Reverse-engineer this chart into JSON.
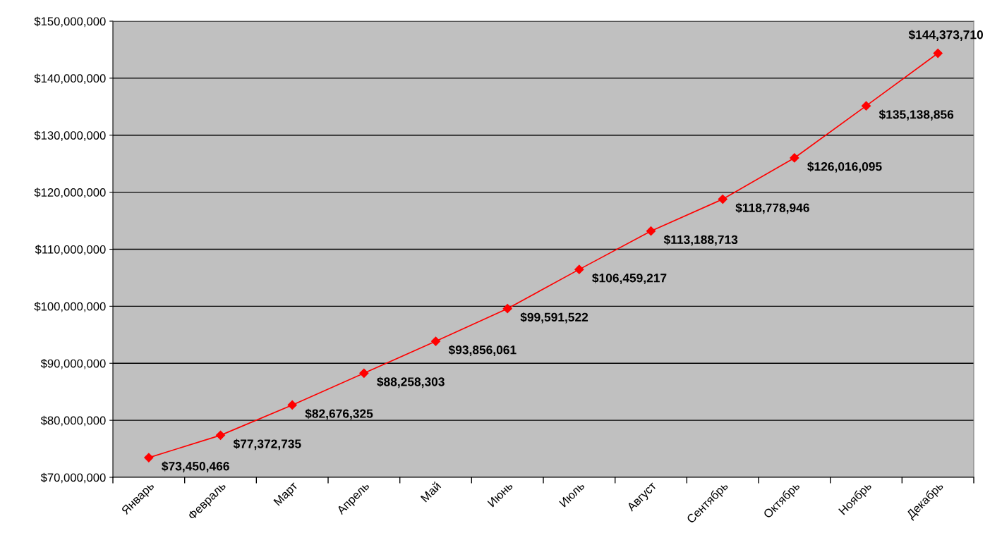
{
  "chart_data": {
    "type": "line",
    "categories": [
      "Январь",
      "Февраль",
      "Март",
      "Апрель",
      "Май",
      "Июнь",
      "Июль",
      "Август",
      "Сентябрь",
      "Октябрь",
      "Ноябрь",
      "Декабрь"
    ],
    "series": [
      {
        "color": "#ff0000",
        "values": [
          73450466,
          77372735,
          82676325,
          88258303,
          93856061,
          99591522,
          106459217,
          113188713,
          118778946,
          126016095,
          135138856,
          144373710
        ],
        "value_labels": [
          "$73,450,466",
          "$77,372,735",
          "$82,676,325",
          "$88,258,303",
          "$93,856,061",
          "$99,591,522",
          "$106,459,217",
          "$113,188,713",
          "$118,778,946",
          "$126,016,095",
          "$135,138,856",
          "$144,373,710"
        ]
      }
    ],
    "ylim": [
      70000000,
      150000000
    ],
    "yticks": [
      {
        "value": 70000000,
        "label": "$70,000,000"
      },
      {
        "value": 80000000,
        "label": "$80,000,000"
      },
      {
        "value": 90000000,
        "label": "$90,000,000"
      },
      {
        "value": 100000000,
        "label": "$100,000,000"
      },
      {
        "value": 110000000,
        "label": "$110,000,000"
      },
      {
        "value": 120000000,
        "label": "$120,000,000"
      },
      {
        "value": 130000000,
        "label": "$130,000,000"
      },
      {
        "value": 140000000,
        "label": "$140,000,000"
      },
      {
        "value": 150000000,
        "label": "$150,000,000"
      }
    ],
    "grid": "y",
    "marker": "diamond",
    "line_style": "solid",
    "legend": false
  }
}
